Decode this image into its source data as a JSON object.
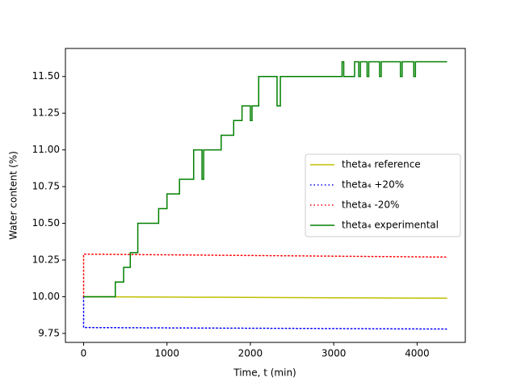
{
  "chart_data": {
    "type": "line",
    "xlabel": "Time, t (min)",
    "ylabel": "Water content (%)",
    "xlim": [
      -218,
      4578
    ],
    "ylim": [
      9.689,
      11.691
    ],
    "xticks": [
      0,
      1000,
      2000,
      3000,
      4000
    ],
    "yticks": [
      {
        "value": 9.75,
        "label": "9.75"
      },
      {
        "value": 10.0,
        "label": "10.00"
      },
      {
        "value": 10.25,
        "label": "10.25"
      },
      {
        "value": 10.5,
        "label": "10.50"
      },
      {
        "value": 10.75,
        "label": "10.75"
      },
      {
        "value": 11.0,
        "label": "11.00"
      },
      {
        "value": 11.25,
        "label": "11.25"
      },
      {
        "value": 11.5,
        "label": "11.50"
      }
    ],
    "legend": "center right",
    "series": [
      {
        "name": "theta₄ reference",
        "color": "#bfbf00",
        "linestyle": "solid",
        "x": [
          0,
          4360
        ],
        "values": [
          10.0,
          9.99
        ]
      },
      {
        "name": "theta₄ +20%",
        "color": "#0000ff",
        "linestyle": "dotted",
        "x": [
          0,
          0,
          4360
        ],
        "values": [
          10.0,
          9.79,
          9.78
        ]
      },
      {
        "name": "theta₄ -20%",
        "color": "#ff0000",
        "linestyle": "dotted",
        "x": [
          0,
          0,
          4360
        ],
        "values": [
          10.0,
          10.29,
          10.27
        ]
      },
      {
        "name": "theta₄ experimental",
        "color": "#008000",
        "linestyle": "solid",
        "x": [
          0,
          380,
          380,
          480,
          480,
          560,
          560,
          650,
          650,
          900,
          900,
          1000,
          1000,
          1150,
          1150,
          1320,
          1320,
          1420,
          1420,
          1440,
          1440,
          1650,
          1650,
          1800,
          1800,
          1900,
          1900,
          2000,
          2000,
          2020,
          2020,
          2100,
          2100,
          2320,
          2320,
          2360,
          2360,
          3100,
          3100,
          3120,
          3120,
          3250,
          3250,
          3300,
          3300,
          3320,
          3320,
          3400,
          3400,
          3420,
          3420,
          3550,
          3550,
          3570,
          3570,
          3800,
          3800,
          3820,
          3820,
          3960,
          3960,
          3980,
          3980,
          4360
        ],
        "values": [
          10.0,
          10.0,
          10.1,
          10.1,
          10.2,
          10.2,
          10.3,
          10.3,
          10.5,
          10.5,
          10.6,
          10.6,
          10.7,
          10.7,
          10.8,
          10.8,
          11.0,
          11.0,
          10.8,
          10.8,
          11.0,
          11.0,
          11.1,
          11.1,
          11.2,
          11.2,
          11.3,
          11.3,
          11.2,
          11.2,
          11.3,
          11.3,
          11.5,
          11.5,
          11.3,
          11.3,
          11.5,
          11.5,
          11.6,
          11.6,
          11.5,
          11.5,
          11.6,
          11.6,
          11.5,
          11.5,
          11.6,
          11.6,
          11.5,
          11.5,
          11.6,
          11.6,
          11.5,
          11.5,
          11.6,
          11.6,
          11.5,
          11.5,
          11.6,
          11.6,
          11.5,
          11.5,
          11.6,
          11.6
        ]
      }
    ]
  }
}
